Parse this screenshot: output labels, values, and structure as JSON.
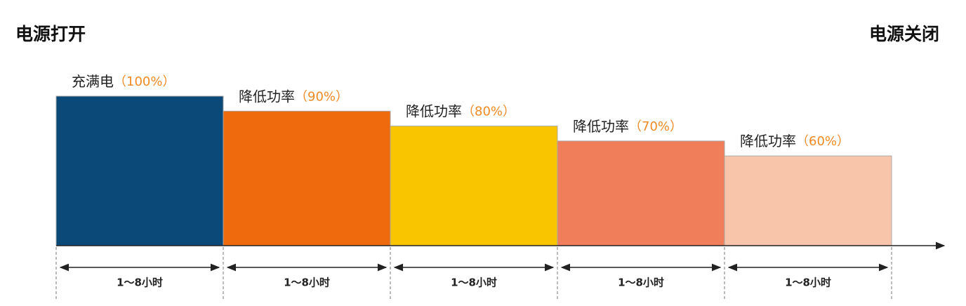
{
  "chart_data": {
    "type": "bar",
    "annotations": [
      "电源打开",
      "电源关闭"
    ],
    "categories": [
      "充满电",
      "降低功率",
      "降低功率",
      "降低功率",
      "降低功率"
    ],
    "values": [
      100,
      90,
      80,
      70,
      60
    ],
    "value_labels": [
      "（100%）",
      "（90%）",
      "（80%）",
      "（70%）",
      "（60%）"
    ],
    "durations": [
      "1～8小时",
      "1～8小时",
      "1～8小时",
      "1～8小时",
      "1～8小时"
    ],
    "colors": [
      "#0b4a78",
      "#ee6a0c",
      "#f8c500",
      "#f07e5a",
      "#f9c5aa"
    ]
  }
}
